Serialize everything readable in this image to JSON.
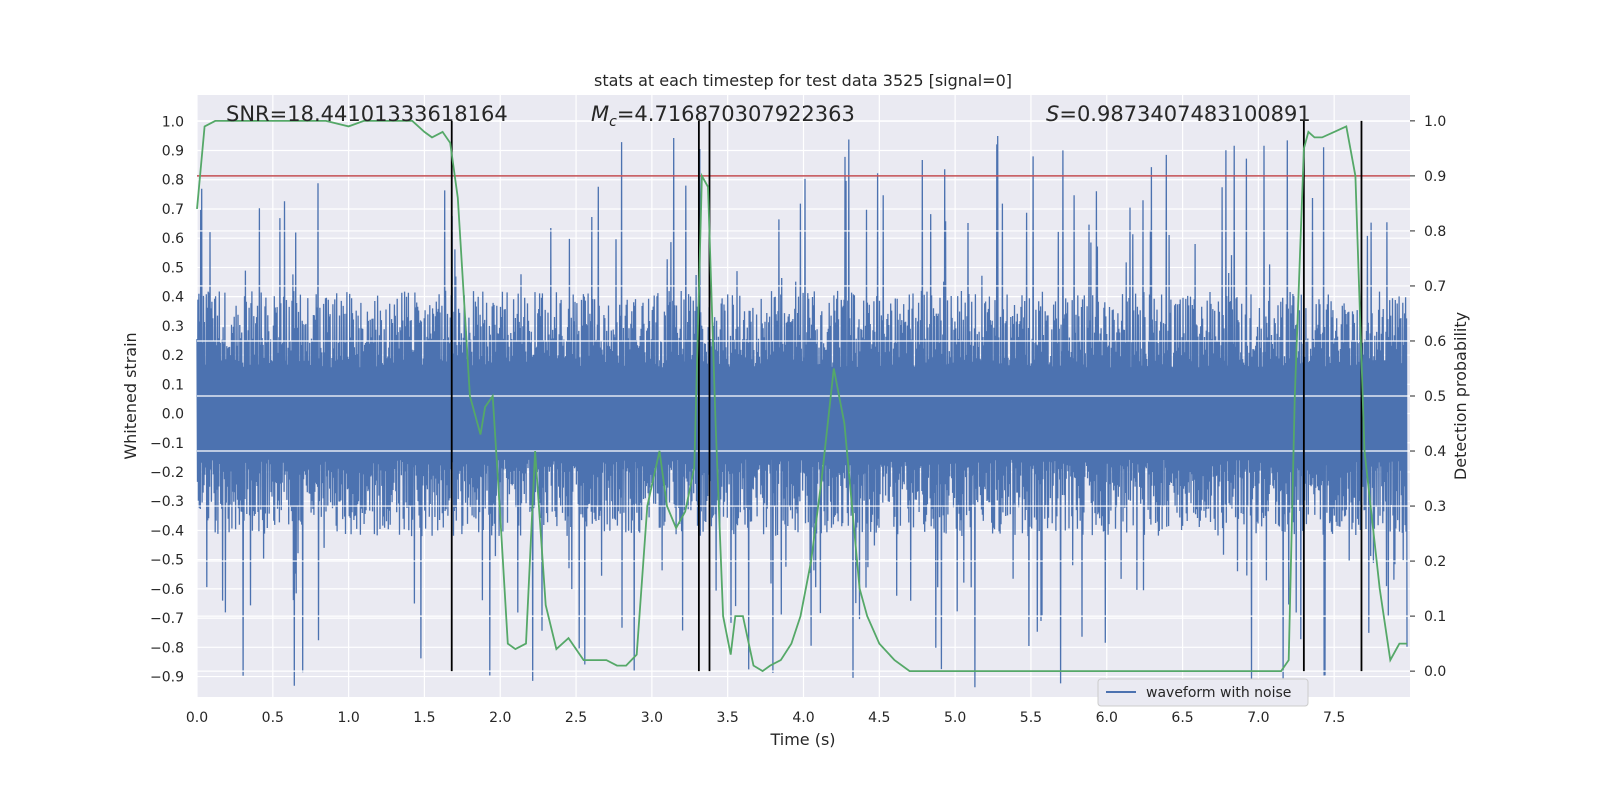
{
  "chart_data": {
    "type": "line",
    "title": "stats at each timestep for test data 3525 [signal=0]",
    "xlabel": "Time (s)",
    "ylabel_left": "Whitened strain",
    "ylabel_right": "Detection probability",
    "xlim": [
      0.0,
      8.0
    ],
    "ylim_left": [
      -0.97,
      1.09
    ],
    "ylim_right": [
      -0.047,
      1.047
    ],
    "x_ticks": [
      "0.0",
      "0.5",
      "1.0",
      "1.5",
      "2.0",
      "2.5",
      "3.0",
      "3.5",
      "4.0",
      "4.5",
      "5.0",
      "5.5",
      "6.0",
      "6.5",
      "7.0",
      "7.5"
    ],
    "y_ticks_left": [
      "-0.9",
      "-0.8",
      "-0.7",
      "-0.6",
      "-0.5",
      "-0.4",
      "-0.3",
      "-0.2",
      "-0.1",
      "0.0",
      "0.1",
      "0.2",
      "0.3",
      "0.4",
      "0.5",
      "0.6",
      "0.7",
      "0.8",
      "0.9",
      "1.0"
    ],
    "y_ticks_right": [
      "0.0",
      "0.1",
      "0.2",
      "0.3",
      "0.4",
      "0.5",
      "0.6",
      "0.7",
      "0.8",
      "0.9",
      "1.0"
    ],
    "grid": true,
    "legend_position": "lower-right",
    "annotations": {
      "snr": "SNR=18.44101333618164",
      "mc_symbol": "M",
      "mc_sub": "c",
      "mc_value": "=4.716870307922363",
      "s_symbol": "S",
      "s_value": "=0.9873407483100891"
    },
    "series": [
      {
        "name": "waveform with noise",
        "axis": "left",
        "color": "#4c72b0",
        "description": "dense whitened strain noise, roughly +/-0.35 typical with spikes reaching about +/-0.9",
        "typical_amplitude": 0.35,
        "peak_amplitude": 0.95
      },
      {
        "axis": "right",
        "color": "#55a868",
        "x": [
          0.0,
          0.05,
          0.12,
          0.2,
          0.35,
          0.5,
          0.7,
          0.85,
          1.0,
          1.1,
          1.25,
          1.42,
          1.5,
          1.55,
          1.62,
          1.67,
          1.72,
          1.8,
          1.87,
          1.9,
          1.95,
          2.0,
          2.05,
          2.1,
          2.17,
          2.23,
          2.3,
          2.37,
          2.45,
          2.55,
          2.62,
          2.7,
          2.77,
          2.83,
          2.9,
          2.97,
          3.05,
          3.1,
          3.16,
          3.22,
          3.28,
          3.33,
          3.37,
          3.42,
          3.47,
          3.52,
          3.55,
          3.6,
          3.67,
          3.73,
          3.78,
          3.85,
          3.92,
          3.98,
          4.05,
          4.12,
          4.2,
          4.27,
          4.32,
          4.37,
          4.42,
          4.5,
          4.6,
          4.7,
          4.78,
          4.85,
          4.95,
          5.1,
          5.3,
          5.5,
          5.8,
          6.1,
          6.4,
          6.7,
          7.0,
          7.15,
          7.2,
          7.24,
          7.3,
          7.33,
          7.37,
          7.42,
          7.5,
          7.58,
          7.64,
          7.7,
          7.74,
          7.8,
          7.87,
          7.93,
          7.98
        ],
        "y": [
          0.84,
          0.99,
          1.0,
          1.0,
          1.0,
          1.0,
          1.0,
          1.0,
          0.99,
          1.0,
          1.0,
          1.0,
          0.98,
          0.97,
          0.98,
          0.96,
          0.86,
          0.5,
          0.43,
          0.48,
          0.5,
          0.28,
          0.05,
          0.04,
          0.05,
          0.4,
          0.12,
          0.04,
          0.06,
          0.02,
          0.02,
          0.02,
          0.01,
          0.01,
          0.03,
          0.3,
          0.4,
          0.3,
          0.26,
          0.29,
          0.37,
          0.9,
          0.88,
          0.45,
          0.1,
          0.03,
          0.1,
          0.1,
          0.01,
          0.0,
          0.01,
          0.02,
          0.05,
          0.1,
          0.2,
          0.35,
          0.55,
          0.45,
          0.3,
          0.15,
          0.1,
          0.05,
          0.02,
          0.0,
          0.0,
          0.0,
          0.0,
          0.0,
          0.0,
          0.0,
          0.0,
          0.0,
          0.0,
          0.0,
          0.0,
          0.0,
          0.02,
          0.5,
          0.95,
          0.98,
          0.97,
          0.97,
          0.98,
          0.99,
          0.9,
          0.4,
          0.3,
          0.15,
          0.02,
          0.05,
          0.05
        ]
      }
    ],
    "threshold_line": {
      "axis": "right",
      "value": 0.9,
      "color": "#c44e52"
    },
    "vertical_lines": [
      1.68,
      3.31,
      3.38,
      7.3,
      7.68
    ],
    "vertical_line_color": "#000000"
  }
}
